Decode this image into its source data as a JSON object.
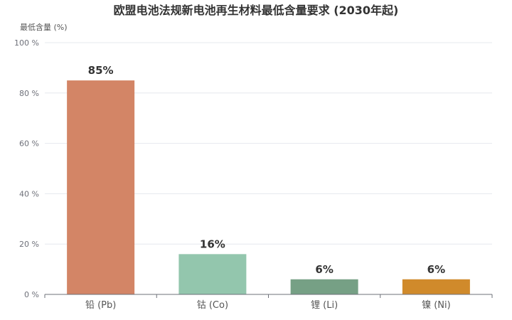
{
  "chart_data": {
    "type": "bar",
    "title": "欧盟电池法规新电池再生材料最低含量要求 (2030年起)",
    "ylabel": "最低含量 (%)",
    "xlabel": "",
    "ylim": [
      0,
      100
    ],
    "yticks": [
      0,
      20,
      40,
      60,
      80,
      100
    ],
    "ytick_labels": [
      "0 %",
      "20 %",
      "40 %",
      "60 %",
      "80 %",
      "100 %"
    ],
    "grid": true,
    "categories": [
      "铅 (Pb)",
      "钴 (Co)",
      "锂 (Li)",
      "镍 (Ni)"
    ],
    "values": [
      85,
      16,
      6,
      6
    ],
    "data_labels": [
      "85%",
      "16%",
      "6%",
      "6%"
    ],
    "colors": [
      "#d38566",
      "#93c6ad",
      "#76a085",
      "#d08a2b"
    ],
    "gridline_color": "#e6e8ee",
    "axis_color": "#6e7079"
  }
}
